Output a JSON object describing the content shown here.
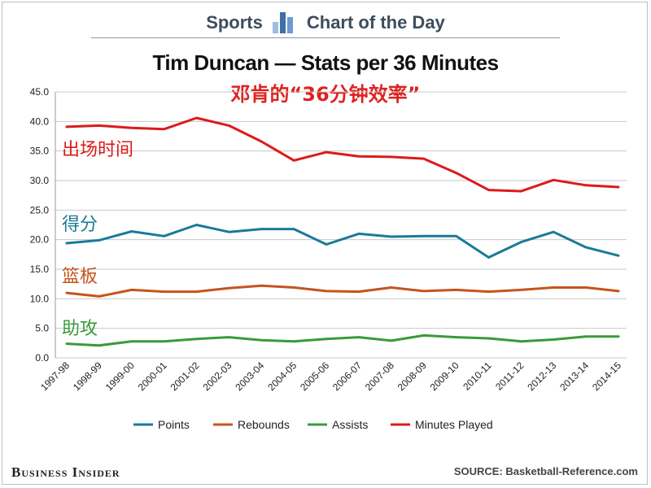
{
  "header": {
    "left_text": "Sports",
    "right_text": "Chart of the Day",
    "logo_icon": "bar-chart-icon"
  },
  "footer": {
    "brand": "Business Insider",
    "source": "SOURCE: Basketball-Reference.com"
  },
  "chart_data": {
    "type": "line",
    "title": "Tim Duncan — Stats per 36 Minutes",
    "subtitle": "邓肯的“36分钟效率”",
    "xlabel": "",
    "ylabel": "",
    "ylim": [
      0,
      45
    ],
    "yticks": [
      "0.0",
      "5.0",
      "10.0",
      "15.0",
      "20.0",
      "25.0",
      "30.0",
      "35.0",
      "40.0",
      "45.0"
    ],
    "grid": true,
    "legend_position": "bottom",
    "categories": [
      "1997-98",
      "1998-99",
      "1999-00",
      "2000-01",
      "2001-02",
      "2002-03",
      "2003-04",
      "2004-05",
      "2005-06",
      "2006-07",
      "2007-08",
      "2008-09",
      "2009-10",
      "2010-11",
      "2011-12",
      "2012-13",
      "2013-14",
      "2014-15"
    ],
    "series": [
      {
        "name": "Points",
        "color": "#1a7a9a",
        "inline_label": "得分",
        "values": [
          19.4,
          19.9,
          21.4,
          20.6,
          22.5,
          21.3,
          21.8,
          21.8,
          19.2,
          21.0,
          20.5,
          20.6,
          20.6,
          17.0,
          19.6,
          21.3,
          18.7,
          17.3
        ]
      },
      {
        "name": "Rebounds",
        "color": "#c5541c",
        "inline_label": "篮板",
        "values": [
          11.0,
          10.4,
          11.5,
          11.2,
          11.2,
          11.8,
          12.2,
          11.9,
          11.3,
          11.2,
          11.9,
          11.3,
          11.5,
          11.2,
          11.5,
          11.9,
          11.9,
          11.3
        ]
      },
      {
        "name": "Assists",
        "color": "#3a9a3a",
        "inline_label": "助攻",
        "values": [
          2.4,
          2.1,
          2.8,
          2.8,
          3.2,
          3.5,
          3.0,
          2.8,
          3.2,
          3.5,
          2.9,
          3.8,
          3.5,
          3.3,
          2.8,
          3.1,
          3.6,
          3.6
        ]
      },
      {
        "name": "Minutes Played",
        "color": "#dd1a1a",
        "inline_label": "出场时间",
        "values": [
          39.1,
          39.3,
          38.9,
          38.7,
          40.6,
          39.3,
          36.6,
          33.4,
          34.8,
          34.1,
          34.0,
          33.7,
          31.3,
          28.4,
          28.2,
          30.1,
          29.2,
          28.9
        ]
      }
    ]
  }
}
